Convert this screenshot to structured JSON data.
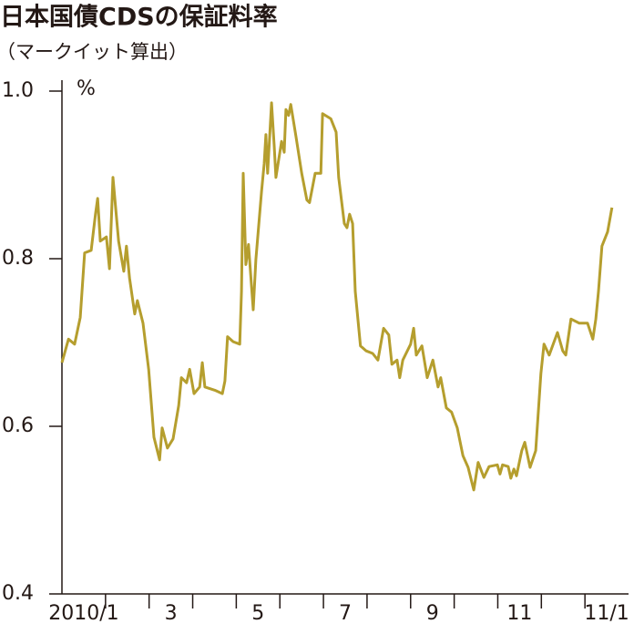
{
  "chart_data": {
    "type": "line",
    "title": "日本国債CDSの保証料率",
    "subtitle": "（マークイット算出）",
    "y_unit": "%",
    "x": [
      0,
      0.15,
      0.29,
      0.42,
      0.52,
      0.67,
      0.77,
      0.82,
      0.88,
      1.02,
      1.09,
      1.17,
      1.3,
      1.42,
      1.48,
      1.55,
      1.67,
      1.73,
      1.86,
      1.99,
      2.11,
      2.24,
      2.3,
      2.42,
      2.55,
      2.68,
      2.74,
      2.86,
      2.93,
      3.03,
      3.16,
      3.22,
      3.28,
      3.51,
      3.68,
      3.74,
      3.8,
      3.93,
      4.08,
      4.12,
      4.16,
      4.22,
      4.28,
      4.39,
      4.45,
      4.58,
      4.64,
      4.68,
      4.72,
      4.81,
      4.87,
      4.91,
      5.04,
      5.1,
      5.14,
      5.2,
      5.25,
      5.37,
      5.5,
      5.62,
      5.68,
      5.81,
      5.94,
      5.98,
      6.17,
      6.29,
      6.35,
      6.48,
      6.54,
      6.6,
      6.67,
      6.73,
      6.85,
      6.98,
      7.13,
      7.25,
      7.38,
      7.5,
      7.57,
      7.69,
      7.75,
      7.82,
      8.0,
      8.07,
      8.13,
      8.26,
      8.38,
      8.51,
      8.63,
      8.69,
      8.82,
      8.94,
      9.07,
      9.2,
      9.32,
      9.45,
      9.55,
      9.68,
      9.8,
      9.99,
      10.05,
      10.11,
      10.24,
      10.3,
      10.37,
      10.43,
      10.55,
      10.62,
      10.74,
      10.87,
      10.99,
      11.06,
      11.18,
      11.37,
      11.49,
      11.56,
      11.68,
      11.87,
      12.06,
      12.18,
      12.25,
      12.31,
      12.39,
      12.52,
      12.62
    ],
    "series": [
      {
        "color": "#b59e2e",
        "values": [
          0.676,
          0.704,
          0.698,
          0.73,
          0.807,
          0.81,
          0.853,
          0.872,
          0.821,
          0.826,
          0.788,
          0.897,
          0.821,
          0.785,
          0.815,
          0.777,
          0.734,
          0.75,
          0.723,
          0.668,
          0.587,
          0.56,
          0.598,
          0.574,
          0.585,
          0.625,
          0.658,
          0.652,
          0.668,
          0.639,
          0.647,
          0.676,
          0.647,
          0.643,
          0.639,
          0.654,
          0.707,
          0.701,
          0.698,
          0.761,
          0.902,
          0.793,
          0.817,
          0.739,
          0.799,
          0.88,
          0.913,
          0.948,
          0.902,
          0.986,
          0.935,
          0.897,
          0.94,
          0.927,
          0.978,
          0.971,
          0.984,
          0.946,
          0.902,
          0.87,
          0.867,
          0.902,
          0.902,
          0.973,
          0.967,
          0.951,
          0.897,
          0.842,
          0.837,
          0.853,
          0.842,
          0.761,
          0.696,
          0.69,
          0.687,
          0.679,
          0.717,
          0.709,
          0.674,
          0.679,
          0.658,
          0.679,
          0.698,
          0.717,
          0.685,
          0.696,
          0.658,
          0.679,
          0.647,
          0.658,
          0.622,
          0.617,
          0.598,
          0.565,
          0.551,
          0.524,
          0.557,
          0.539,
          0.552,
          0.554,
          0.543,
          0.554,
          0.552,
          0.538,
          0.549,
          0.541,
          0.571,
          0.581,
          0.551,
          0.571,
          0.663,
          0.698,
          0.685,
          0.712,
          0.69,
          0.685,
          0.728,
          0.723,
          0.723,
          0.704,
          0.728,
          0.761,
          0.815,
          0.832,
          0.861
        ]
      }
    ],
    "xlim": [
      0,
      13
    ],
    "xticks": [
      {
        "value": 0.5,
        "label": "2010/1"
      },
      {
        "value": 2.5,
        "label": "3"
      },
      {
        "value": 4.5,
        "label": "5"
      },
      {
        "value": 6.5,
        "label": "7"
      },
      {
        "value": 8.5,
        "label": "9"
      },
      {
        "value": 10.5,
        "label": "11"
      },
      {
        "value": 12.5,
        "label": "11/1"
      }
    ],
    "x_minor_ticks": [
      1,
      2,
      3,
      4,
      5,
      6,
      7,
      8,
      9,
      10,
      11,
      12
    ],
    "ylim": [
      0.4,
      1.0
    ],
    "yticks": [
      {
        "value": 1.0,
        "label": "1.0"
      },
      {
        "value": 0.8,
        "label": "0.8"
      },
      {
        "value": 0.6,
        "label": "0.6"
      },
      {
        "value": 0.4,
        "label": "0.4"
      }
    ],
    "grid": false
  }
}
